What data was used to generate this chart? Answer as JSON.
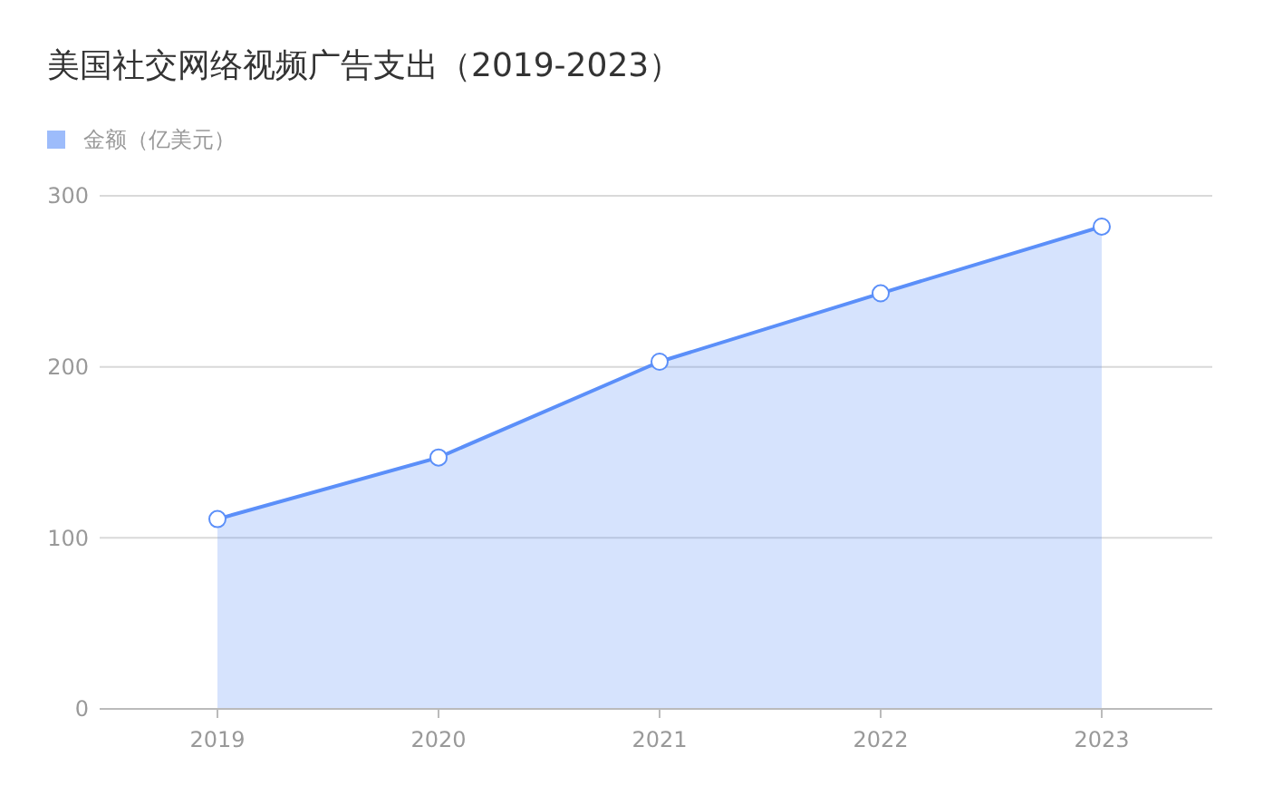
{
  "chart_data": {
    "type": "area",
    "title": "美国社交网络视频广告支出（2019-2023）",
    "categories": [
      "2019",
      "2020",
      "2021",
      "2022",
      "2023"
    ],
    "series": [
      {
        "name": "金额（亿美元）",
        "color": "#5b8ff9",
        "values": [
          111,
          147,
          203,
          243,
          282
        ]
      }
    ],
    "ylim": [
      0,
      300
    ],
    "yticks": [
      0,
      100,
      200,
      300
    ],
    "grid": "y",
    "legend": "top left",
    "marker": "circle"
  }
}
